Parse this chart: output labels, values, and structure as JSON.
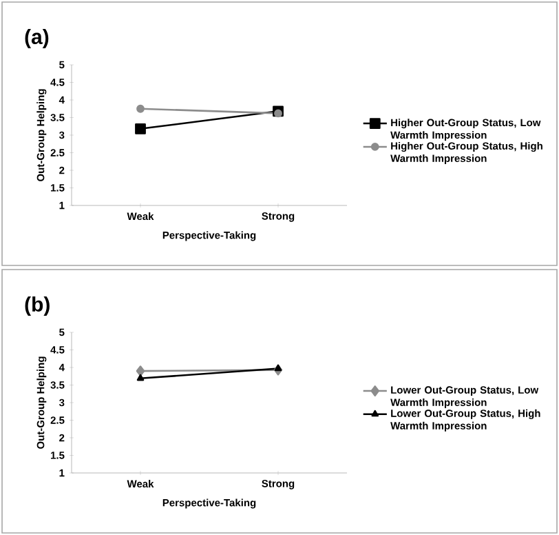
{
  "chart_data": [
    {
      "type": "line",
      "title": "(a)",
      "xlabel": "Perspective-Taking",
      "ylabel": "Out-Group Helping",
      "categories": [
        "Weak",
        "Strong"
      ],
      "ylim": [
        1,
        5
      ],
      "yticks": [
        1,
        1.5,
        2,
        2.5,
        3,
        3.5,
        4,
        4.5,
        5
      ],
      "legend": "right",
      "grid": false,
      "series": [
        {
          "name": "Higher Out-Group Status, Low Warmth Impression",
          "color": "#000000",
          "marker": "square",
          "values": [
            3.18,
            3.68
          ]
        },
        {
          "name": "Higher Out-Group Status, High Warmth Impression",
          "color": "#8c8c8c",
          "marker": "circle",
          "values": [
            3.75,
            3.62
          ]
        }
      ]
    },
    {
      "type": "line",
      "title": "(b)",
      "xlabel": "Perspective-Taking",
      "ylabel": "Out-Group Helping",
      "categories": [
        "Weak",
        "Strong"
      ],
      "ylim": [
        1,
        5
      ],
      "yticks": [
        1,
        1.5,
        2,
        2.5,
        3,
        3.5,
        4,
        4.5,
        5
      ],
      "legend": "right",
      "grid": false,
      "series": [
        {
          "name": "Lower Out-Group Status, Low Warmth Impression",
          "color": "#8c8c8c",
          "marker": "diamond",
          "values": [
            3.9,
            3.93
          ]
        },
        {
          "name": "Lower Out-Group Status, High Warmth Impression",
          "color": "#000000",
          "marker": "triangle",
          "values": [
            3.69,
            3.97
          ]
        }
      ]
    }
  ]
}
